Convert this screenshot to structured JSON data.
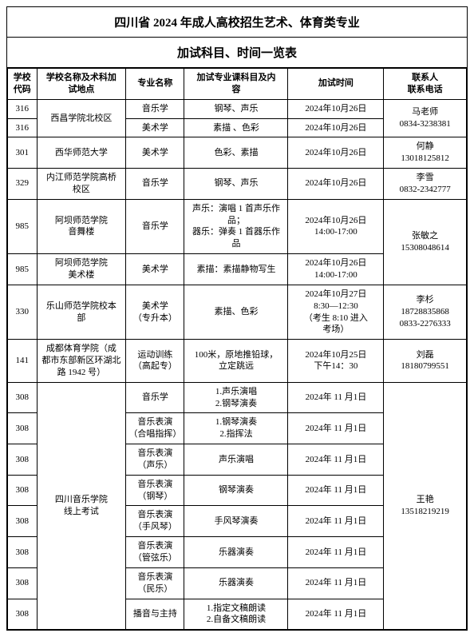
{
  "title1": "四川省 2024 年成人高校招生艺术、体育类专业",
  "title2": "加试科目、时间一览表",
  "headers": {
    "code": "学校\n代码",
    "school": "学校名称及术科加\n试地点",
    "major": "专业名称",
    "subject": "加试专业课科目及内\n容",
    "time": "加试时间",
    "contact": "联系人\n联系电话"
  },
  "cells": {
    "r1_code": "316",
    "r1_school": "西昌学院北校区",
    "r1_major": "音乐学",
    "r1_subj": "钢琴、声乐",
    "r1_time": "2024年10月26日",
    "r1_contact": "马老师\n0834-3238381",
    "r2_code": "316",
    "r2_major": "美术学",
    "r2_subj": "素描 、色彩",
    "r2_time": "2024年10月26日",
    "r3_code": "301",
    "r3_school": "西华师范大学",
    "r3_major": "美术学",
    "r3_subj": "色彩、素描",
    "r3_time": "2024年10月26日",
    "r3_contact": "何静\n13018125812",
    "r4_code": "329",
    "r4_school": "内江师范学院高桥\n校区",
    "r4_major": "音乐学",
    "r4_subj": "钢琴、声乐",
    "r4_time": "2024年10月26日",
    "r4_contact": "李雪\n0832-2342777",
    "r5_code": "985",
    "r5_school": "阿坝师范学院\n音舞楼",
    "r5_major": "音乐学",
    "r5_subj": "声乐：演唱 1 首声乐作\n品；\n器乐：弹奏 1 首器乐作\n品",
    "r5_time": "2024年10月26日\n14:00-17:00",
    "r5_contact": "张敏之\n15308048614",
    "r6_code": "985",
    "r6_school": "阿坝师范学院\n美术楼",
    "r6_major": "美术学",
    "r6_subj": "素描：素描静物写生",
    "r6_time": "2024年10月26日\n14:00-17:00",
    "r7_code": "330",
    "r7_school": "乐山师范学院校本\n部",
    "r7_major": "美术学\n（专升本）",
    "r7_subj": "素描、色彩",
    "r7_time": "2024年10月27日\n8:30—12:30\n（考生 8:10 进入\n考场）",
    "r7_contact": "李杉\n18728835868\n0833-2276333",
    "r8_code": "141",
    "r8_school": "成都体育学院（成\n都市东部新区环湖北路 1942 号）",
    "r8_major": "运动训练\n（高起专）",
    "r8_subj": "100米，原地推铅球，\n立定跳远",
    "r8_time": "2024年10月25日\n下午14：30",
    "r8_contact": "刘磊\n18180799551",
    "r9_code": "308",
    "r9_school": "四川音乐学院\n线上考试",
    "r9_major": "音乐学",
    "r9_subj": "1.声乐演唱\n2.钢琴演奏",
    "r9_time": "2024年 11 月1日",
    "r9_contact": "王艳\n13518219219",
    "r10_code": "308",
    "r10_major": "音乐表演\n（合唱指挥）",
    "r10_subj": "1.钢琴演奏\n2.指挥法",
    "r10_time": "2024年 11 月1日",
    "r11_code": "308",
    "r11_major": "音乐表演\n（声乐）",
    "r11_subj": "声乐演唱",
    "r11_time": "2024年 11 月1日",
    "r12_code": "308",
    "r12_major": "音乐表演\n（钢琴）",
    "r12_subj": "钢琴演奏",
    "r12_time": "2024年 11 月1日",
    "r13_code": "308",
    "r13_major": "音乐表演\n（手风琴）",
    "r13_subj": "手风琴演奏",
    "r13_time": "2024年 11 月1日",
    "r14_code": "308",
    "r14_major": "音乐表演\n（管弦乐）",
    "r14_subj": "乐器演奏",
    "r14_time": "2024年 11 月1日",
    "r15_code": "308",
    "r15_major": "音乐表演\n（民乐）",
    "r15_subj": "乐器演奏",
    "r15_time": "2024年 11 月1日",
    "r16_code": "308",
    "r16_major": "播音与主持",
    "r16_subj": "1.指定文稿朗读\n2.自备文稿朗读",
    "r16_time": "2024年 11 月1日"
  }
}
